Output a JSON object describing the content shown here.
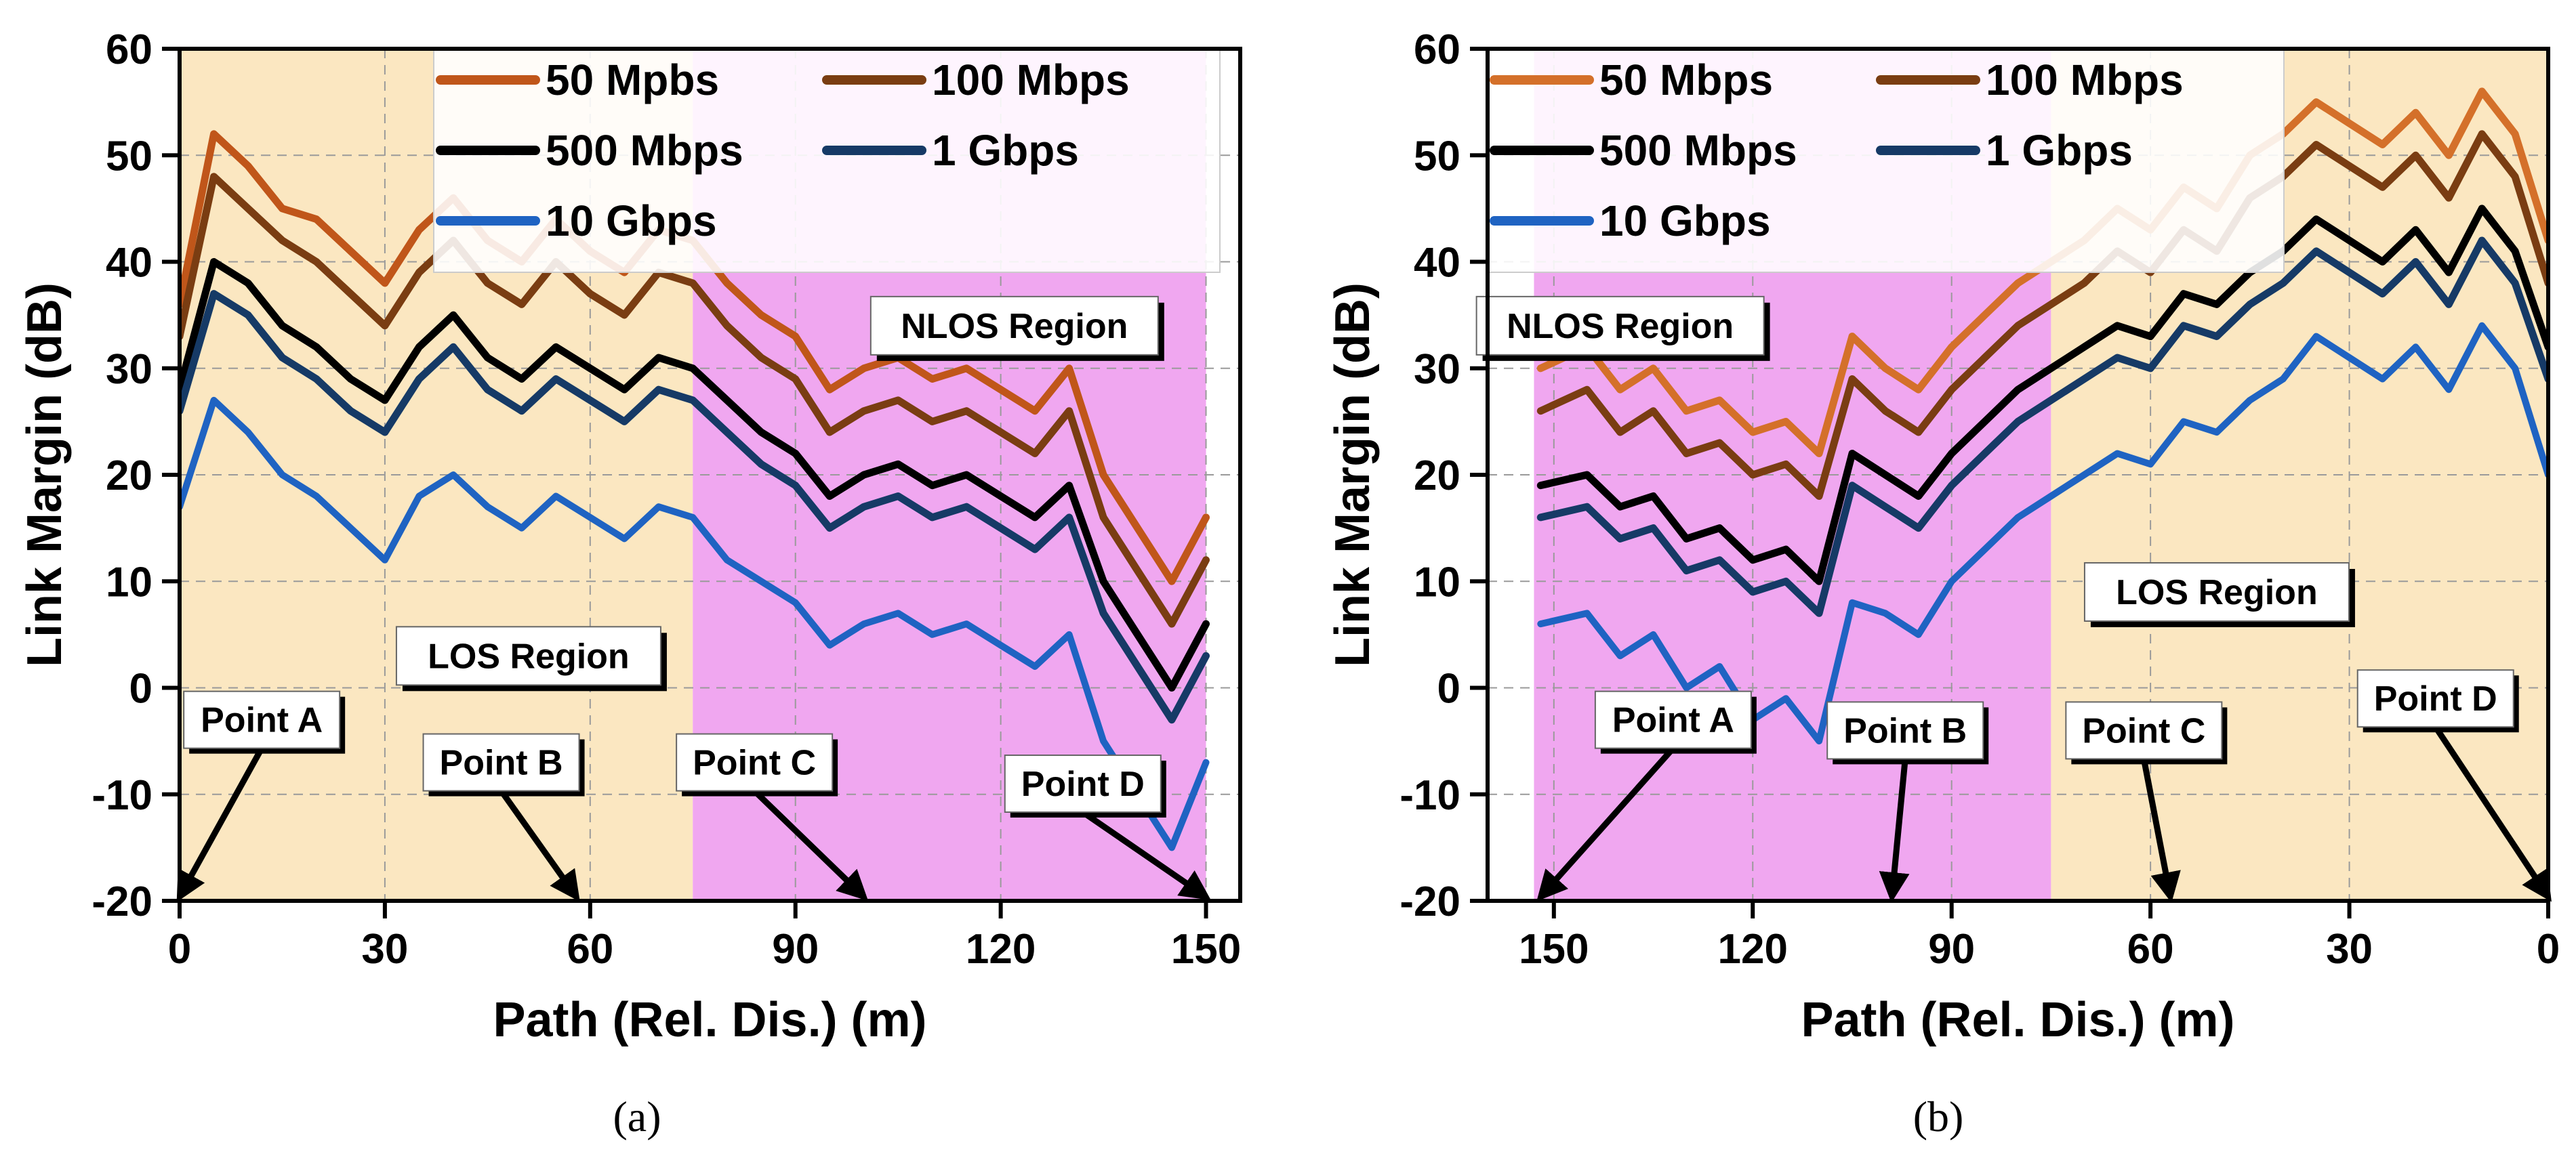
{
  "chart_data": [
    {
      "type": "line",
      "panel": "a",
      "caption": "(a)",
      "xlabel": "Path (Rel. Dis.) (m)",
      "ylabel": "Link Margin (dB)",
      "xlim": [
        0,
        155
      ],
      "ylim": [
        -20,
        60
      ],
      "x_reversed": false,
      "xticks": [
        0,
        30,
        60,
        90,
        120,
        150
      ],
      "yticks": [
        -20,
        -10,
        0,
        10,
        20,
        30,
        40,
        50,
        60
      ],
      "grid": true,
      "legend_position": "top-right",
      "regions": [
        {
          "label": "LOS Region",
          "from": 0,
          "to": 75,
          "color": "#fbe7c1",
          "label_x": 51,
          "label_y": 3
        },
        {
          "label": "NLOS Region",
          "from": 75,
          "to": 150,
          "color": "#f0a7f0",
          "label_x": 122,
          "label_y": 34
        }
      ],
      "annotations": [
        {
          "label": "Point A",
          "label_x": 12,
          "label_y": -3,
          "arrow_to": [
            0,
            -20
          ]
        },
        {
          "label": "Point B",
          "label_x": 47,
          "label_y": -7,
          "arrow_to": [
            58,
            -20
          ]
        },
        {
          "label": "Point C",
          "label_x": 84,
          "label_y": -7,
          "arrow_to": [
            100,
            -20
          ]
        },
        {
          "label": "Point D",
          "label_x": 132,
          "label_y": -9,
          "arrow_to": [
            150,
            -20
          ]
        }
      ],
      "series": [
        {
          "name": "50 Mpbs",
          "color": "#c0561a",
          "x": [
            0,
            5,
            10,
            15,
            20,
            25,
            30,
            35,
            40,
            45,
            50,
            55,
            60,
            65,
            70,
            75,
            80,
            85,
            90,
            95,
            100,
            105,
            110,
            115,
            120,
            125,
            130,
            135,
            140,
            145,
            150
          ],
          "y": [
            36,
            52,
            49,
            45,
            44,
            41,
            38,
            43,
            46,
            42,
            40,
            44,
            41,
            39,
            43,
            42,
            38,
            35,
            33,
            28,
            30,
            31,
            29,
            30,
            28,
            26,
            30,
            20,
            15,
            10,
            16
          ]
        },
        {
          "name": "100 Mbps",
          "color": "#7a3d12",
          "x": [
            0,
            5,
            10,
            15,
            20,
            25,
            30,
            35,
            40,
            45,
            50,
            55,
            60,
            65,
            70,
            75,
            80,
            85,
            90,
            95,
            100,
            105,
            110,
            115,
            120,
            125,
            130,
            135,
            140,
            145,
            150
          ],
          "y": [
            33,
            48,
            45,
            42,
            40,
            37,
            34,
            39,
            42,
            38,
            36,
            40,
            37,
            35,
            39,
            38,
            34,
            31,
            29,
            24,
            26,
            27,
            25,
            26,
            24,
            22,
            26,
            16,
            11,
            6,
            12
          ]
        },
        {
          "name": "500 Mbps",
          "color": "#000000",
          "x": [
            0,
            5,
            10,
            15,
            20,
            25,
            30,
            35,
            40,
            45,
            50,
            55,
            60,
            65,
            70,
            75,
            80,
            85,
            90,
            95,
            100,
            105,
            110,
            115,
            120,
            125,
            130,
            135,
            140,
            145,
            150
          ],
          "y": [
            28,
            40,
            38,
            34,
            32,
            29,
            27,
            32,
            35,
            31,
            29,
            32,
            30,
            28,
            31,
            30,
            27,
            24,
            22,
            18,
            20,
            21,
            19,
            20,
            18,
            16,
            19,
            10,
            5,
            0,
            6
          ]
        },
        {
          "name": "1 Gbps",
          "color": "#163a66",
          "x": [
            0,
            5,
            10,
            15,
            20,
            25,
            30,
            35,
            40,
            45,
            50,
            55,
            60,
            65,
            70,
            75,
            80,
            85,
            90,
            95,
            100,
            105,
            110,
            115,
            120,
            125,
            130,
            135,
            140,
            145,
            150
          ],
          "y": [
            26,
            37,
            35,
            31,
            29,
            26,
            24,
            29,
            32,
            28,
            26,
            29,
            27,
            25,
            28,
            27,
            24,
            21,
            19,
            15,
            17,
            18,
            16,
            17,
            15,
            13,
            16,
            7,
            2,
            -3,
            3
          ]
        },
        {
          "name": "10 Gbps",
          "color": "#1f63c2",
          "x": [
            0,
            5,
            10,
            15,
            20,
            25,
            30,
            35,
            40,
            45,
            50,
            55,
            60,
            65,
            70,
            75,
            80,
            85,
            90,
            95,
            100,
            105,
            110,
            115,
            120,
            125,
            130,
            135,
            140,
            145,
            150
          ],
          "y": [
            17,
            27,
            24,
            20,
            18,
            15,
            12,
            18,
            20,
            17,
            15,
            18,
            16,
            14,
            17,
            16,
            12,
            10,
            8,
            4,
            6,
            7,
            5,
            6,
            4,
            2,
            5,
            -5,
            -10,
            -15,
            -7
          ]
        }
      ]
    },
    {
      "type": "line",
      "panel": "b",
      "caption": "(b)",
      "xlabel": "Path (Rel. Dis.) (m)",
      "ylabel": "Link Margin (dB)",
      "xlim": [
        0,
        160
      ],
      "ylim": [
        -20,
        60
      ],
      "x_reversed": true,
      "xticks": [
        150,
        120,
        90,
        60,
        30,
        0
      ],
      "yticks": [
        -20,
        -10,
        0,
        10,
        20,
        30,
        40,
        50,
        60
      ],
      "grid": true,
      "legend_position": "top-left",
      "regions": [
        {
          "label": "NLOS Region",
          "from": 75,
          "to": 153,
          "color": "#f0a7f0",
          "label_x": 140,
          "label_y": 34
        },
        {
          "label": "LOS Region",
          "from": 0,
          "to": 75,
          "color": "#fbe7c1",
          "label_x": 50,
          "label_y": 9
        }
      ],
      "annotations": [
        {
          "label": "Point A",
          "label_x": 132,
          "label_y": -3,
          "arrow_to": [
            152,
            -20
          ]
        },
        {
          "label": "Point B",
          "label_x": 97,
          "label_y": -4,
          "arrow_to": [
            99,
            -20
          ]
        },
        {
          "label": "Point C",
          "label_x": 61,
          "label_y": -4,
          "arrow_to": [
            57,
            -20
          ]
        },
        {
          "label": "Point D",
          "label_x": 17,
          "label_y": -1,
          "arrow_to": [
            0,
            -20
          ]
        }
      ],
      "series": [
        {
          "name": "50 Mbps",
          "color": "#d4702a",
          "x": [
            152,
            145,
            140,
            135,
            130,
            125,
            120,
            115,
            110,
            105,
            100,
            95,
            90,
            85,
            80,
            75,
            70,
            65,
            60,
            55,
            50,
            45,
            40,
            35,
            30,
            25,
            20,
            15,
            10,
            5,
            0
          ],
          "y": [
            30,
            32,
            28,
            30,
            26,
            27,
            24,
            25,
            22,
            33,
            30,
            28,
            32,
            35,
            38,
            40,
            42,
            45,
            43,
            47,
            45,
            50,
            52,
            55,
            53,
            51,
            54,
            50,
            56,
            52,
            42
          ]
        },
        {
          "name": "100 Mbps",
          "color": "#7a3d12",
          "x": [
            152,
            145,
            140,
            135,
            130,
            125,
            120,
            115,
            110,
            105,
            100,
            95,
            90,
            85,
            80,
            75,
            70,
            65,
            60,
            55,
            50,
            45,
            40,
            35,
            30,
            25,
            20,
            15,
            10,
            5,
            0
          ],
          "y": [
            26,
            28,
            24,
            26,
            22,
            23,
            20,
            21,
            18,
            29,
            26,
            24,
            28,
            31,
            34,
            36,
            38,
            41,
            39,
            43,
            41,
            46,
            48,
            51,
            49,
            47,
            50,
            46,
            52,
            48,
            38
          ]
        },
        {
          "name": "500 Mbps",
          "color": "#000000",
          "x": [
            152,
            145,
            140,
            135,
            130,
            125,
            120,
            115,
            110,
            105,
            100,
            95,
            90,
            85,
            80,
            75,
            70,
            65,
            60,
            55,
            50,
            45,
            40,
            35,
            30,
            25,
            20,
            15,
            10,
            5,
            0
          ],
          "y": [
            19,
            20,
            17,
            18,
            14,
            15,
            12,
            13,
            10,
            22,
            20,
            18,
            22,
            25,
            28,
            30,
            32,
            34,
            33,
            37,
            36,
            39,
            41,
            44,
            42,
            40,
            43,
            39,
            45,
            41,
            32
          ]
        },
        {
          "name": "1 Gbps",
          "color": "#163a66",
          "x": [
            152,
            145,
            140,
            135,
            130,
            125,
            120,
            115,
            110,
            105,
            100,
            95,
            90,
            85,
            80,
            75,
            70,
            65,
            60,
            55,
            50,
            45,
            40,
            35,
            30,
            25,
            20,
            15,
            10,
            5,
            0
          ],
          "y": [
            16,
            17,
            14,
            15,
            11,
            12,
            9,
            10,
            7,
            19,
            17,
            15,
            19,
            22,
            25,
            27,
            29,
            31,
            30,
            34,
            33,
            36,
            38,
            41,
            39,
            37,
            40,
            36,
            42,
            38,
            29
          ]
        },
        {
          "name": "10 Gbps",
          "color": "#1f63c2",
          "x": [
            152,
            145,
            140,
            135,
            130,
            125,
            120,
            115,
            110,
            105,
            100,
            95,
            90,
            85,
            80,
            75,
            70,
            65,
            60,
            55,
            50,
            45,
            40,
            35,
            30,
            25,
            20,
            15,
            10,
            5,
            0
          ],
          "y": [
            6,
            7,
            3,
            5,
            0,
            2,
            -3,
            -1,
            -5,
            8,
            7,
            5,
            10,
            13,
            16,
            18,
            20,
            22,
            21,
            25,
            24,
            27,
            29,
            33,
            31,
            29,
            32,
            28,
            34,
            30,
            20
          ]
        }
      ]
    }
  ]
}
